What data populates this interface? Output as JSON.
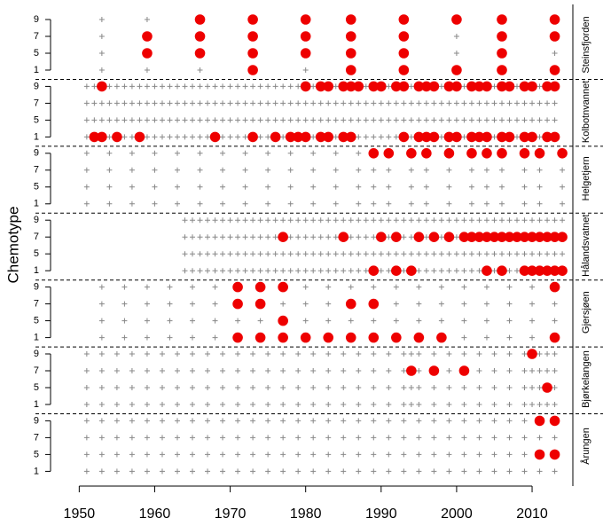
{
  "chart_data": {
    "type": "dotplot",
    "ylabel": "Chemotype",
    "xlim": [
      1946.2,
      2015.4
    ],
    "xticks": [
      1950,
      1960,
      1970,
      1980,
      1990,
      2000,
      2010
    ],
    "chemotypes": [
      9,
      7,
      5,
      1
    ],
    "color": "#ee0000",
    "cross_color": "#888888",
    "panels": [
      {
        "name": "Steinsfjorden",
        "sampled": [
          1953,
          1959,
          1966,
          1973,
          1980,
          1986,
          1993,
          2000,
          2006,
          2013
        ],
        "detected": [
          [
            1966,
            1973,
            1980,
            1986,
            1993,
            2000,
            2006,
            2013
          ],
          [
            1959,
            1966,
            1973,
            1980,
            1986,
            1993,
            2006,
            2013
          ],
          [
            1959,
            1966,
            1973,
            1980,
            1986,
            1993,
            2006
          ],
          [
            1973,
            1986,
            1993,
            2000,
            2006,
            2013
          ]
        ]
      },
      {
        "name": "Kolbotnvannet",
        "sampled": [
          1951,
          1952,
          1953,
          1954,
          1955,
          1956,
          1957,
          1958,
          1959,
          1960,
          1961,
          1962,
          1963,
          1964,
          1965,
          1966,
          1967,
          1968,
          1969,
          1970,
          1971,
          1972,
          1973,
          1974,
          1975,
          1976,
          1977,
          1978,
          1979,
          1980,
          1981,
          1982,
          1983,
          1984,
          1985,
          1986,
          1987,
          1988,
          1989,
          1990,
          1991,
          1992,
          1993,
          1994,
          1995,
          1996,
          1997,
          1998,
          1999,
          2000,
          2001,
          2002,
          2003,
          2004,
          2005,
          2006,
          2007,
          2008,
          2009,
          2010,
          2011,
          2012,
          2013
        ],
        "detected": [
          [
            1953,
            1980,
            1982,
            1983,
            1985,
            1986,
            1987,
            1989,
            1990,
            1992,
            1993,
            1995,
            1996,
            1997,
            1999,
            2000,
            2002,
            2003,
            2004,
            2006,
            2007,
            2009,
            2010,
            2012,
            2013
          ],
          [],
          [],
          [
            1952,
            1953,
            1955,
            1958,
            1968,
            1973,
            1976,
            1978,
            1979,
            1980,
            1982,
            1983,
            1985,
            1986,
            1993,
            1995,
            1996,
            1997,
            1999,
            2000,
            2002,
            2003,
            2004,
            2006,
            2007,
            2009,
            2010,
            2012,
            2013
          ]
        ]
      },
      {
        "name": "Helgetjern",
        "sampled": [
          1951,
          1954,
          1957,
          1960,
          1963,
          1966,
          1969,
          1972,
          1975,
          1978,
          1981,
          1984,
          1987,
          1989,
          1991,
          1994,
          1996,
          1999,
          2002,
          2004,
          2006,
          2009,
          2011,
          2014
        ],
        "detected": [
          [
            1989,
            1991,
            1994,
            1996,
            1999,
            2002,
            2004,
            2006,
            2009,
            2011,
            2014
          ],
          [],
          [],
          []
        ]
      },
      {
        "name": "Hålandsvatnet",
        "sampled": [
          1964,
          1965,
          1966,
          1967,
          1968,
          1969,
          1970,
          1971,
          1972,
          1973,
          1974,
          1975,
          1976,
          1977,
          1978,
          1979,
          1980,
          1981,
          1982,
          1983,
          1984,
          1985,
          1986,
          1987,
          1988,
          1989,
          1990,
          1991,
          1992,
          1993,
          1994,
          1995,
          1996,
          1997,
          1998,
          1999,
          2000,
          2001,
          2002,
          2003,
          2004,
          2005,
          2006,
          2007,
          2008,
          2009,
          2010,
          2011,
          2012,
          2013,
          2014
        ],
        "detected": [
          [],
          [
            1977,
            1985,
            1990,
            1992,
            1995,
            1997,
            1999,
            2001,
            2002,
            2003,
            2004,
            2005,
            2006,
            2007,
            2008,
            2009,
            2010,
            2011,
            2012,
            2013,
            2014
          ],
          [],
          [
            1989,
            1992,
            1994,
            2004,
            2006,
            2009,
            2010,
            2011,
            2012,
            2013,
            2014
          ]
        ]
      },
      {
        "name": "Gjersjøen",
        "sampled": [
          1953,
          1956,
          1959,
          1962,
          1965,
          1968,
          1971,
          1974,
          1977,
          1980,
          1983,
          1986,
          1989,
          1992,
          1995,
          1998,
          2001,
          2004,
          2007,
          2010,
          2013
        ],
        "detected": [
          [
            1971,
            1974,
            1977,
            2013
          ],
          [
            1971,
            1974,
            1986,
            1989
          ],
          [
            1977
          ],
          [
            1971,
            1974,
            1977,
            1980,
            1983,
            1986,
            1989,
            1992,
            1995,
            1998,
            2013
          ]
        ]
      },
      {
        "name": "Bjørkelangen",
        "sampled": [
          1951,
          1953,
          1955,
          1957,
          1959,
          1961,
          1963,
          1965,
          1967,
          1969,
          1971,
          1973,
          1975,
          1977,
          1979,
          1981,
          1983,
          1985,
          1987,
          1989,
          1991,
          1993,
          1994,
          1995,
          1997,
          1999,
          2001,
          2003,
          2005,
          2007,
          2009,
          2010,
          2011,
          2012,
          2013
        ],
        "detected": [
          [
            2010
          ],
          [
            1994,
            1997,
            2001
          ],
          [
            2012
          ],
          []
        ]
      },
      {
        "name": "Årungen",
        "sampled": [
          1951,
          1953,
          1955,
          1957,
          1959,
          1961,
          1963,
          1965,
          1967,
          1969,
          1971,
          1973,
          1975,
          1977,
          1979,
          1981,
          1983,
          1985,
          1987,
          1989,
          1991,
          1993,
          1995,
          1997,
          1999,
          2001,
          2003,
          2005,
          2007,
          2009,
          2011,
          2013
        ],
        "detected": [
          [
            2011,
            2013
          ],
          [],
          [
            2011,
            2013
          ],
          []
        ]
      }
    ]
  }
}
